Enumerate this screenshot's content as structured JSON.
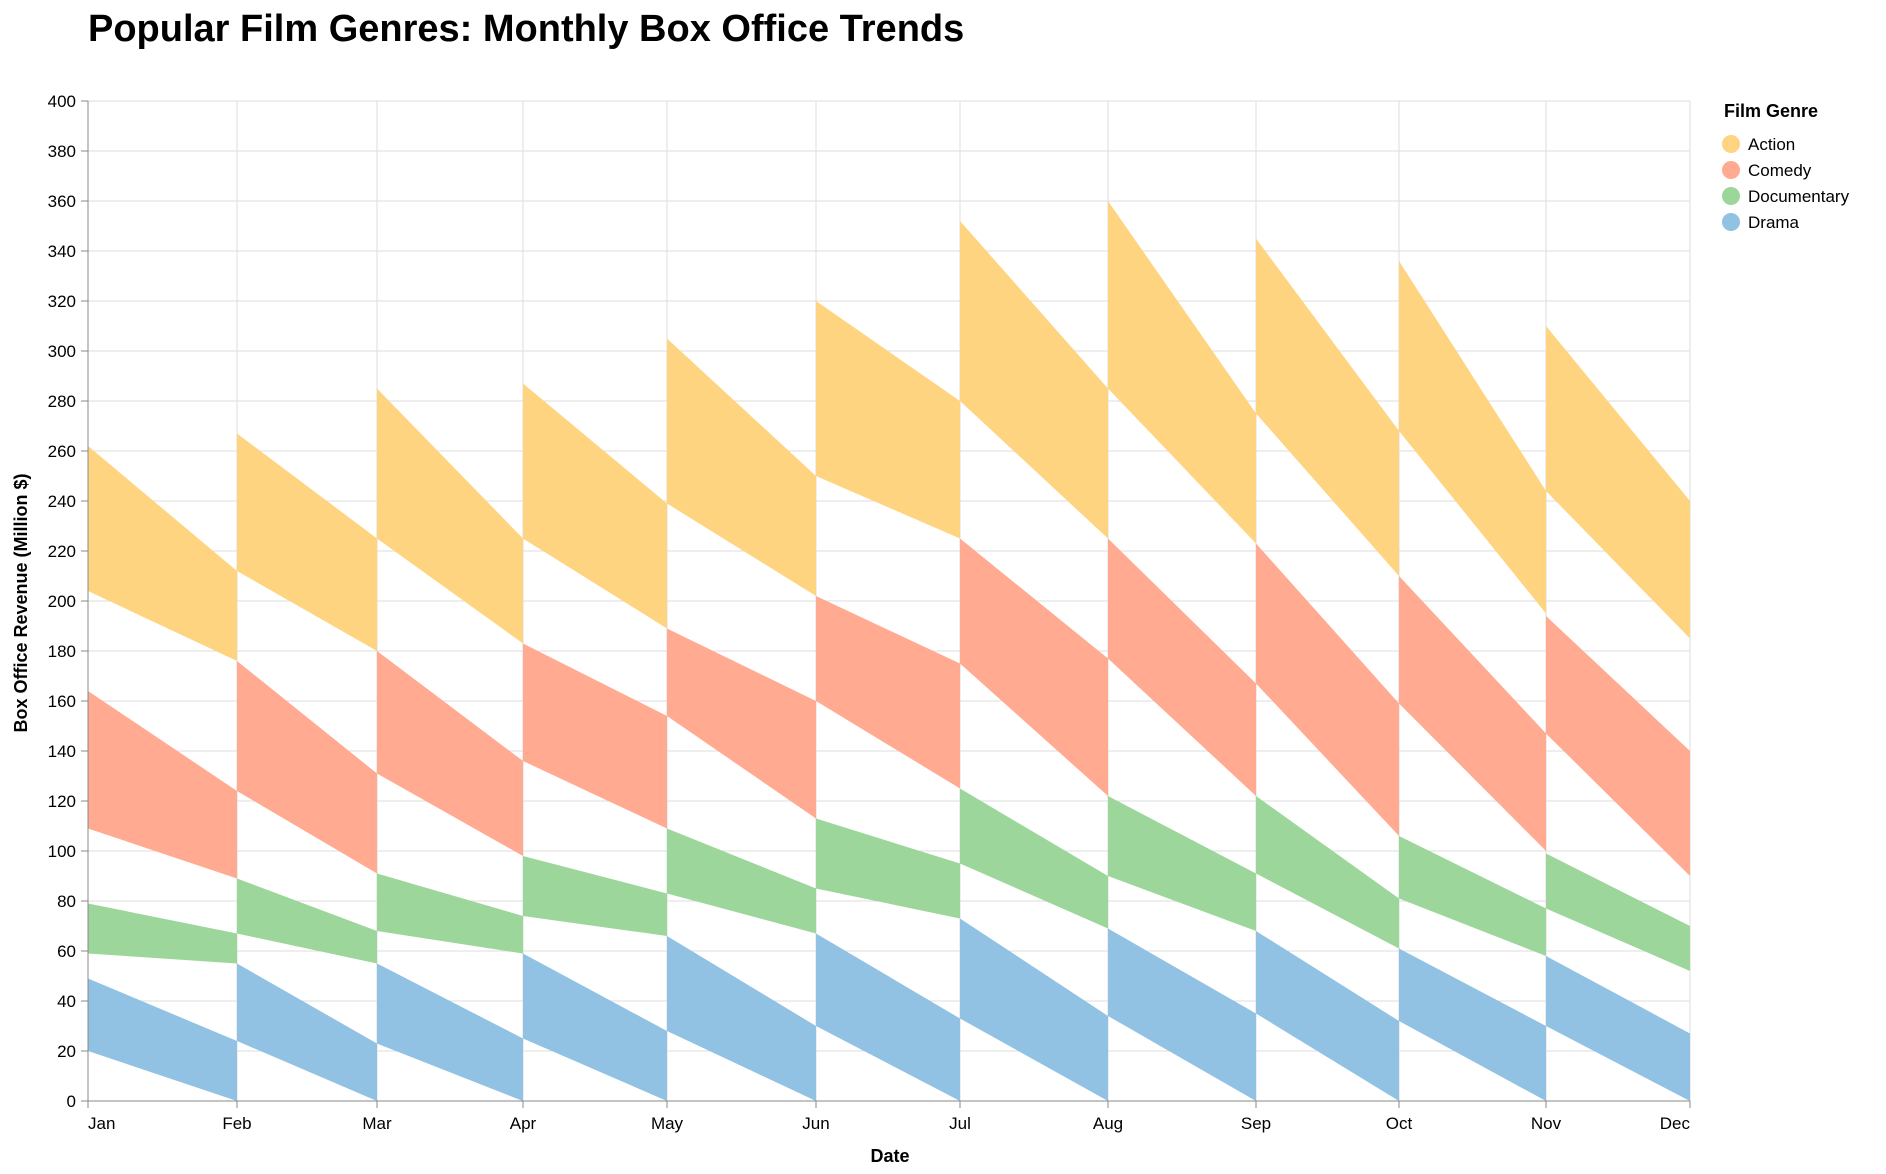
{
  "chart_data": {
    "type": "area",
    "title": "Popular Film Genres: Monthly Box Office Trends",
    "xlabel": "Date",
    "ylabel": "Box Office Revenue (Million $)",
    "ylim": [
      0,
      400
    ],
    "yticks": [
      0,
      20,
      40,
      60,
      80,
      100,
      120,
      140,
      160,
      180,
      200,
      220,
      240,
      260,
      280,
      300,
      320,
      340,
      360,
      380,
      400
    ],
    "categories": [
      "Jan",
      "Feb",
      "Mar",
      "Apr",
      "May",
      "Jun",
      "Jul",
      "Aug",
      "Sep",
      "Oct",
      "Nov",
      "Dec"
    ],
    "grid": true,
    "legend": {
      "title": "Film Genre",
      "position": "top-right"
    },
    "series": [
      {
        "name": "Action",
        "color": "#FFD480",
        "start": [
          [
            204,
            262
          ],
          [
            212,
            267
          ],
          [
            225,
            285
          ],
          [
            225,
            287
          ],
          [
            239,
            305
          ],
          [
            250,
            320
          ],
          [
            280,
            352
          ],
          [
            285,
            360
          ],
          [
            275,
            345
          ],
          [
            268,
            336
          ],
          [
            244,
            310
          ]
        ],
        "end": [
          [
            176,
            212
          ],
          [
            180,
            225
          ],
          [
            183,
            225
          ],
          [
            189,
            239
          ],
          [
            202,
            250
          ],
          [
            225,
            280
          ],
          [
            225,
            285
          ],
          [
            223,
            275
          ],
          [
            210,
            268
          ],
          [
            195,
            244
          ],
          [
            185,
            240
          ]
        ]
      },
      {
        "name": "Comedy",
        "color": "#FFAA91",
        "start": [
          [
            109,
            164
          ],
          [
            124,
            176
          ],
          [
            131,
            180
          ],
          [
            136,
            183
          ],
          [
            154,
            189
          ],
          [
            160,
            202
          ],
          [
            175,
            225
          ],
          [
            177,
            225
          ],
          [
            167,
            223
          ],
          [
            159,
            210
          ],
          [
            147,
            194
          ]
        ],
        "end": [
          [
            89,
            124
          ],
          [
            91,
            131
          ],
          [
            98,
            136
          ],
          [
            109,
            154
          ],
          [
            113,
            160
          ],
          [
            125,
            175
          ],
          [
            122,
            177
          ],
          [
            122,
            167
          ],
          [
            106,
            159
          ],
          [
            100,
            147
          ],
          [
            90,
            140
          ]
        ]
      },
      {
        "name": "Documentary",
        "color": "#9CD69B",
        "start": [
          [
            59,
            79
          ],
          [
            67,
            89
          ],
          [
            68,
            91
          ],
          [
            74,
            98
          ],
          [
            83,
            109
          ],
          [
            85,
            113
          ],
          [
            95,
            125
          ],
          [
            90,
            122
          ],
          [
            91,
            122
          ],
          [
            81,
            106
          ],
          [
            77,
            99
          ]
        ],
        "end": [
          [
            55,
            67
          ],
          [
            55,
            68
          ],
          [
            59,
            74
          ],
          [
            66,
            83
          ],
          [
            67,
            85
          ],
          [
            73,
            95
          ],
          [
            69,
            90
          ],
          [
            68,
            91
          ],
          [
            61,
            81
          ],
          [
            58,
            77
          ],
          [
            52,
            70
          ]
        ]
      },
      {
        "name": "Drama",
        "color": "#91C2E3",
        "start": [
          [
            20,
            49
          ],
          [
            24,
            55
          ],
          [
            23,
            55
          ],
          [
            25,
            59
          ],
          [
            28,
            66
          ],
          [
            30,
            67
          ],
          [
            33,
            73
          ],
          [
            34,
            69
          ],
          [
            35,
            68
          ],
          [
            32,
            61
          ],
          [
            30,
            58
          ]
        ],
        "end": [
          [
            0,
            24
          ],
          [
            0,
            23
          ],
          [
            0,
            25
          ],
          [
            0,
            28
          ],
          [
            0,
            30
          ],
          [
            0,
            33
          ],
          [
            0,
            34
          ],
          [
            0,
            35
          ],
          [
            0,
            32
          ],
          [
            0,
            30
          ],
          [
            0,
            27
          ]
        ]
      }
    ]
  }
}
